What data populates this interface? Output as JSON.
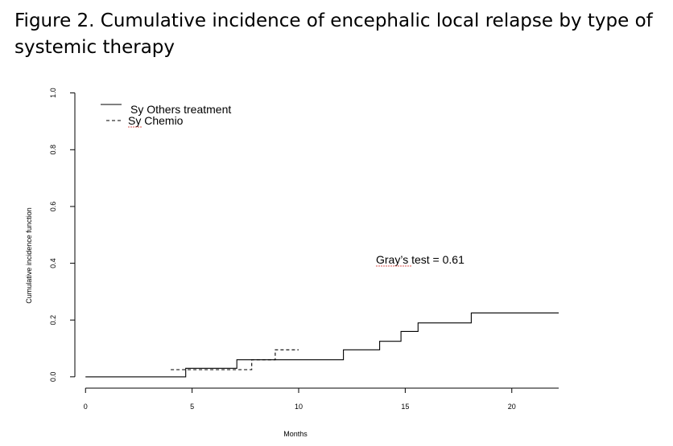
{
  "figure_title": "Figure 2. Cumulative incidence of encephalic local relapse by type of systemic therapy",
  "annotation": "Gray’s test = 0.61",
  "colors": {
    "line": "#000000",
    "spell_underline": "#d9534f"
  },
  "chart_data": {
    "type": "line",
    "title": "",
    "xlabel": "Months",
    "ylabel": "Cumulative incidence function",
    "xlim": [
      -0.5,
      22.2
    ],
    "ylim": [
      -0.04,
      1.05
    ],
    "xticks": [
      0,
      5,
      10,
      15,
      20
    ],
    "yticks": [
      0.0,
      0.2,
      0.4,
      0.6,
      0.8,
      1.0
    ],
    "xtick_labels": [
      "0",
      "5",
      "10",
      "15",
      "20"
    ],
    "ytick_labels": [
      "0.0",
      "0.2",
      "0.4",
      "0.6",
      "0.8",
      "1.0"
    ],
    "legend_position": "top-left",
    "grid": false,
    "series": [
      {
        "name": "Sy Others treatment",
        "style": "solid",
        "step": true,
        "x": [
          0,
          4.7,
          7.1,
          12.1,
          13.8,
          14.8,
          15.6,
          18.1,
          22.2
        ],
        "y": [
          0.0,
          0.03,
          0.06,
          0.095,
          0.125,
          0.16,
          0.19,
          0.225,
          0.225
        ]
      },
      {
        "name": "Sy Chemio",
        "style": "dashed",
        "step": true,
        "x": [
          4.0,
          7.8,
          8.9,
          10.0
        ],
        "y": [
          0.025,
          0.06,
          0.095,
          0.095
        ]
      }
    ]
  }
}
